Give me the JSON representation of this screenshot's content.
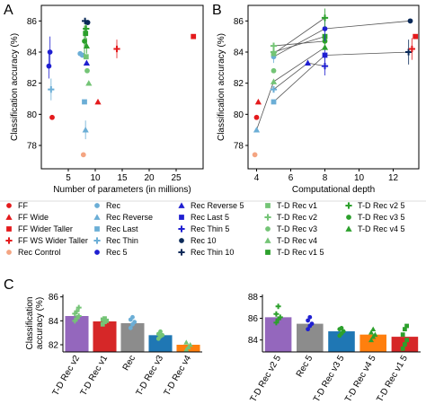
{
  "panels": {
    "a": "A",
    "b": "B",
    "c": "C"
  },
  "colors": {
    "ff": "#e41a1c",
    "rec": "#6baed6",
    "rec_dark": "#1f1fd1",
    "navy": "#0b2a59",
    "td": "#2ca02c",
    "td_light": "#74c476",
    "control": "#f4a582",
    "bar_purple": "#9467bd",
    "bar_red": "#d62728",
    "bar_gray": "#8c8c8c",
    "bar_blue": "#1f77b4",
    "bar_orange": "#ff7f0e"
  },
  "chart_data": [
    {
      "id": "A",
      "type": "scatter",
      "xlabel": "Number of parameters (in millions)",
      "ylabel": "Classification accuracy (%)",
      "xlim": [
        0,
        30
      ],
      "ylim": [
        76.5,
        87
      ],
      "xticks": [
        5,
        10,
        15,
        20,
        25
      ],
      "yticks": [
        78,
        80,
        82,
        84,
        86
      ],
      "points": [
        {
          "x": 1.6,
          "y": 84.0,
          "err": 1.0,
          "color": "#1f1fd1",
          "marker": "circle"
        },
        {
          "x": 1.4,
          "y": 83.1,
          "err": 0.8,
          "color": "#1f1fd1",
          "marker": "circle"
        },
        {
          "x": 1.8,
          "y": 81.6,
          "err": 0.7,
          "color": "#6baed6",
          "marker": "plus"
        },
        {
          "x": 2.0,
          "y": 79.8,
          "err": 0,
          "color": "#e41a1c",
          "marker": "circle"
        },
        {
          "x": 7.2,
          "y": 83.9,
          "err": 0,
          "color": "#6baed6",
          "marker": "circle"
        },
        {
          "x": 7.6,
          "y": 83.8,
          "err": 0,
          "color": "#6baed6",
          "marker": "circle"
        },
        {
          "x": 7.8,
          "y": 77.4,
          "err": 0,
          "color": "#f4a582",
          "marker": "circle"
        },
        {
          "x": 8.0,
          "y": 80.8,
          "err": 0,
          "color": "#6baed6",
          "marker": "square"
        },
        {
          "x": 8.2,
          "y": 79.0,
          "err": 0.6,
          "color": "#6baed6",
          "marker": "triangle"
        },
        {
          "x": 8.0,
          "y": 84.7,
          "err": 1.0,
          "color": "#2ca02c",
          "marker": "circle"
        },
        {
          "x": 8.2,
          "y": 85.2,
          "err": 0.9,
          "color": "#2ca02c",
          "marker": "square"
        },
        {
          "x": 8.4,
          "y": 84.4,
          "err": 0.5,
          "color": "#2ca02c",
          "marker": "triangle"
        },
        {
          "x": 8.1,
          "y": 86.0,
          "err": 0,
          "color": "#0b2a59",
          "marker": "plus"
        },
        {
          "x": 8.6,
          "y": 85.9,
          "err": 0,
          "color": "#0b2a59",
          "marker": "circle"
        },
        {
          "x": 8.3,
          "y": 85.5,
          "err": 0,
          "color": "#2ca02c",
          "marker": "plus"
        },
        {
          "x": 8.3,
          "y": 83.7,
          "err": 0,
          "color": "#74c476",
          "marker": "square"
        },
        {
          "x": 8.5,
          "y": 82.8,
          "err": 0,
          "color": "#74c476",
          "marker": "circle"
        },
        {
          "x": 8.8,
          "y": 82.0,
          "err": 0,
          "color": "#74c476",
          "marker": "triangle"
        },
        {
          "x": 8.4,
          "y": 83.3,
          "err": 0,
          "color": "#1f1fd1",
          "marker": "triangle"
        },
        {
          "x": 14.0,
          "y": 84.2,
          "err": 0.6,
          "color": "#e41a1c",
          "marker": "plus"
        },
        {
          "x": 10.5,
          "y": 80.8,
          "err": 0,
          "color": "#e41a1c",
          "marker": "triangle"
        },
        {
          "x": 28.2,
          "y": 85.0,
          "err": 0,
          "color": "#e41a1c",
          "marker": "square"
        }
      ]
    },
    {
      "id": "B",
      "type": "scatter",
      "xlabel": "Computational depth",
      "ylabel": "Classification accuracy (%)",
      "xlim": [
        3.5,
        13.5
      ],
      "ylim": [
        76.5,
        87
      ],
      "xticks": [
        4,
        6,
        8,
        10,
        12
      ],
      "yticks": [
        78,
        80,
        82,
        84,
        86
      ],
      "lines": [
        [
          [
            4,
            79.0
          ],
          [
            5,
            82.1
          ],
          [
            8,
            84.3
          ]
        ],
        [
          [
            5,
            80.8
          ],
          [
            8,
            83.8
          ],
          [
            13,
            84.0
          ]
        ],
        [
          [
            5,
            81.6
          ],
          [
            7,
            83.3
          ],
          [
            8,
            83.1
          ]
        ],
        [
          [
            5,
            83.7
          ],
          [
            8,
            85.5
          ],
          [
            13,
            86.0
          ]
        ],
        [
          [
            5,
            83.9
          ],
          [
            8,
            86.2
          ]
        ],
        [
          [
            5,
            84.0
          ],
          [
            8,
            85.0
          ]
        ],
        [
          [
            5,
            84.4
          ],
          [
            8,
            84.7
          ]
        ]
      ],
      "points": [
        {
          "x": 4.0,
          "y": 79.8,
          "err": 0,
          "color": "#e41a1c",
          "marker": "circle"
        },
        {
          "x": 4.0,
          "y": 79.0,
          "err": 0,
          "color": "#6baed6",
          "marker": "triangle"
        },
        {
          "x": 4.1,
          "y": 80.8,
          "err": 0,
          "color": "#e41a1c",
          "marker": "triangle"
        },
        {
          "x": 3.9,
          "y": 77.4,
          "err": 0,
          "color": "#f4a582",
          "marker": "circle"
        },
        {
          "x": 5.0,
          "y": 80.8,
          "err": 0,
          "color": "#6baed6",
          "marker": "square"
        },
        {
          "x": 5.0,
          "y": 81.6,
          "err": 0,
          "color": "#6baed6",
          "marker": "plus"
        },
        {
          "x": 5.0,
          "y": 82.1,
          "err": 0,
          "color": "#74c476",
          "marker": "triangle"
        },
        {
          "x": 5.0,
          "y": 82.8,
          "err": 0,
          "color": "#74c476",
          "marker": "circle"
        },
        {
          "x": 5.0,
          "y": 83.7,
          "err": 0.4,
          "color": "#6baed6",
          "marker": "circle"
        },
        {
          "x": 5.0,
          "y": 83.9,
          "err": 0,
          "color": "#74c476",
          "marker": "square"
        },
        {
          "x": 5.0,
          "y": 84.0,
          "err": 0,
          "color": "#74c476",
          "marker": "plus"
        },
        {
          "x": 5.0,
          "y": 84.4,
          "err": 0,
          "color": "#74c476",
          "marker": "plus"
        },
        {
          "x": 7.0,
          "y": 83.3,
          "err": 0,
          "color": "#1f1fd1",
          "marker": "triangle"
        },
        {
          "x": 8.0,
          "y": 83.1,
          "err": 0.6,
          "color": "#1f1fd1",
          "marker": "plus"
        },
        {
          "x": 8.0,
          "y": 83.8,
          "err": 0.5,
          "color": "#1f1fd1",
          "marker": "square"
        },
        {
          "x": 8.0,
          "y": 84.3,
          "err": 0,
          "color": "#2ca02c",
          "marker": "triangle"
        },
        {
          "x": 8.0,
          "y": 84.7,
          "err": 0.5,
          "color": "#2ca02c",
          "marker": "circle"
        },
        {
          "x": 8.0,
          "y": 85.0,
          "err": 0,
          "color": "#2ca02c",
          "marker": "square"
        },
        {
          "x": 8.0,
          "y": 85.5,
          "err": 0.8,
          "color": "#1f1fd1",
          "marker": "circle"
        },
        {
          "x": 8.0,
          "y": 86.2,
          "err": 0.6,
          "color": "#2ca02c",
          "marker": "plus"
        },
        {
          "x": 13.0,
          "y": 86.0,
          "err": 0,
          "color": "#0b2a59",
          "marker": "circle"
        },
        {
          "x": 12.9,
          "y": 84.0,
          "err": 0.8,
          "color": "#0b2a59",
          "marker": "plus"
        },
        {
          "x": 13.1,
          "y": 84.2,
          "err": 0.7,
          "color": "#e41a1c",
          "marker": "plus"
        },
        {
          "x": 13.3,
          "y": 85.0,
          "err": 0,
          "color": "#e41a1c",
          "marker": "square"
        }
      ]
    },
    {
      "id": "C-left",
      "type": "bar",
      "ylabel": "Classification accuracy (%)",
      "ylim": [
        81.4,
        86.2
      ],
      "yticks": [
        82,
        84,
        86
      ],
      "categories": [
        "T-D Rec v2",
        "T-D Rec v1",
        "Rec",
        "T-D Rec v3",
        "T-D Rec v4"
      ],
      "values": [
        84.4,
        83.95,
        83.8,
        82.8,
        82.0
      ],
      "bar_colors": [
        "#9467bd",
        "#d62728",
        "#8c8c8c",
        "#1f77b4",
        "#ff7f0e"
      ],
      "point_colors": [
        "#74c476",
        "#74c476",
        "#6baed6",
        "#74c476",
        "#74c476"
      ],
      "point_markers": [
        "plus",
        "square",
        "circle",
        "circle",
        "triangle"
      ],
      "points": [
        [
          84.0,
          84.2,
          84.4,
          84.6,
          84.8,
          85.1
        ],
        [
          83.7,
          83.9,
          84.0,
          84.1,
          84.2
        ],
        [
          83.4,
          83.7,
          83.9,
          84.1,
          84.3
        ],
        [
          82.5,
          82.7,
          82.8,
          82.9,
          83.1
        ],
        [
          81.6,
          81.8,
          82.0,
          82.2
        ]
      ]
    },
    {
      "id": "C-right",
      "type": "bar",
      "ylim": [
        82.9,
        88.2
      ],
      "yticks": [
        84,
        86,
        88
      ],
      "categories": [
        "T-D Rec v2 5",
        "Rec 5",
        "T-D Rec v3 5",
        "T-D Rec v4 5",
        "T-D Rec v1 5"
      ],
      "values": [
        86.1,
        85.5,
        84.8,
        84.5,
        84.3
      ],
      "bar_colors": [
        "#9467bd",
        "#8c8c8c",
        "#1f77b4",
        "#ff7f0e",
        "#d62728"
      ],
      "point_colors": [
        "#2ca02c",
        "#1f1fd1",
        "#2ca02c",
        "#2ca02c",
        "#2ca02c"
      ],
      "point_markers": [
        "plus",
        "circle",
        "circle",
        "triangle",
        "square"
      ],
      "points": [
        [
          85.6,
          85.9,
          86.1,
          86.4,
          87.1
        ],
        [
          85.0,
          85.3,
          85.5,
          85.8,
          86.1
        ],
        [
          84.4,
          84.6,
          84.8,
          85.0,
          85.1
        ],
        [
          84.0,
          84.3,
          84.5,
          84.7,
          85.0
        ],
        [
          83.2,
          83.6,
          84.0,
          84.5,
          85.0,
          85.3
        ]
      ]
    }
  ],
  "legend": [
    {
      "label": "FF",
      "color": "#e41a1c",
      "marker": "circle"
    },
    {
      "label": "FF Wide",
      "color": "#e41a1c",
      "marker": "triangle"
    },
    {
      "label": "FF Wider Taller",
      "color": "#e41a1c",
      "marker": "square"
    },
    {
      "label": "FF WS Wider Taller",
      "color": "#e41a1c",
      "marker": "plus"
    },
    {
      "label": "Rec Control",
      "color": "#f4a582",
      "marker": "circle"
    },
    {
      "label": "Rec",
      "color": "#6baed6",
      "marker": "circle"
    },
    {
      "label": "Rec Reverse",
      "color": "#6baed6",
      "marker": "triangle"
    },
    {
      "label": "Rec Last",
      "color": "#6baed6",
      "marker": "square"
    },
    {
      "label": "Rec Thin",
      "color": "#6baed6",
      "marker": "plus"
    },
    {
      "label": "Rec 5",
      "color": "#1f1fd1",
      "marker": "circle"
    },
    {
      "label": "Rec Reverse 5",
      "color": "#1f1fd1",
      "marker": "triangle"
    },
    {
      "label": "Rec Last 5",
      "color": "#1f1fd1",
      "marker": "square"
    },
    {
      "label": "Rec Thin 5",
      "color": "#1f1fd1",
      "marker": "plus"
    },
    {
      "label": "Rec 10",
      "color": "#0b2a59",
      "marker": "circle"
    },
    {
      "label": "Rec Thin 10",
      "color": "#0b2a59",
      "marker": "plus"
    },
    {
      "label": "T-D Rec v1",
      "color": "#74c476",
      "marker": "square"
    },
    {
      "label": "T-D Rec v2",
      "color": "#74c476",
      "marker": "plus"
    },
    {
      "label": "T-D Rec v3",
      "color": "#74c476",
      "marker": "circle"
    },
    {
      "label": "T-D Rec v4",
      "color": "#74c476",
      "marker": "triangle"
    },
    {
      "label": "T-D Rec v1 5",
      "color": "#2ca02c",
      "marker": "square"
    },
    {
      "label": "T-D Rec v2 5",
      "color": "#2ca02c",
      "marker": "plus"
    },
    {
      "label": "T-D Rec v3 5",
      "color": "#2ca02c",
      "marker": "circle"
    },
    {
      "label": "T-D Rec v4 5",
      "color": "#2ca02c",
      "marker": "triangle"
    }
  ]
}
